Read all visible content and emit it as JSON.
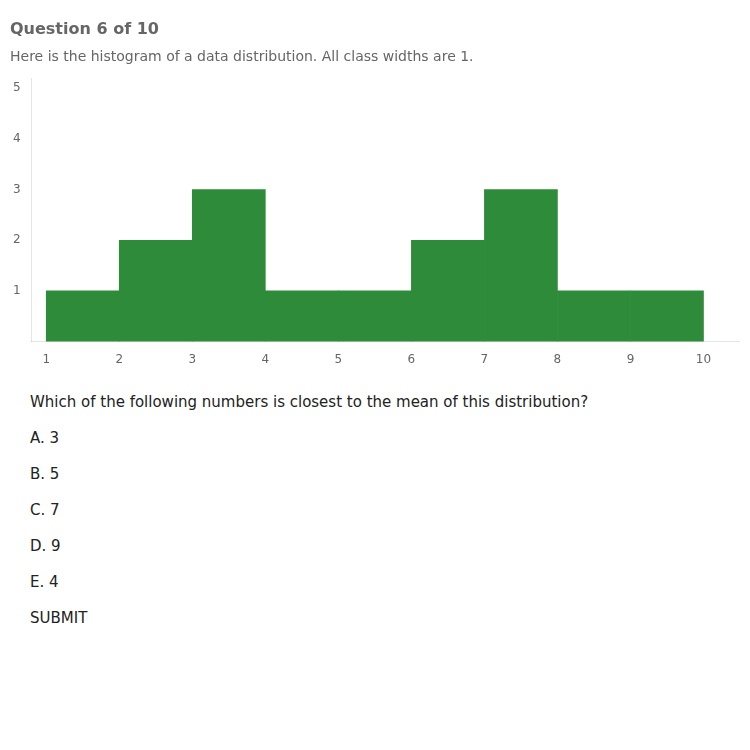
{
  "chart_data": {
    "type": "histogram",
    "title": "Question 6 of 10",
    "subtitle": "Here is the histogram of a data distribution. All class widths are 1.",
    "bins": [
      1,
      2,
      3,
      4,
      5,
      6,
      7,
      8,
      9,
      10
    ],
    "values": [
      1,
      2,
      3,
      1,
      1,
      2,
      3,
      1,
      1
    ],
    "color": "#2e8b3a",
    "xlim": [
      0.8,
      10.5
    ],
    "xticks": [
      1,
      2,
      3,
      4,
      5,
      6,
      7,
      8,
      9,
      10
    ],
    "ylim": [
      0,
      5.2
    ],
    "yticks": [
      1,
      2,
      3,
      4,
      5
    ],
    "grid": false,
    "annotations": [
      "Which of the following numbers is closest to the mean of this distribution?",
      "A. 3",
      "B. 5",
      "C. 7",
      "D. 9",
      "E. 4",
      "SUBMIT"
    ]
  }
}
